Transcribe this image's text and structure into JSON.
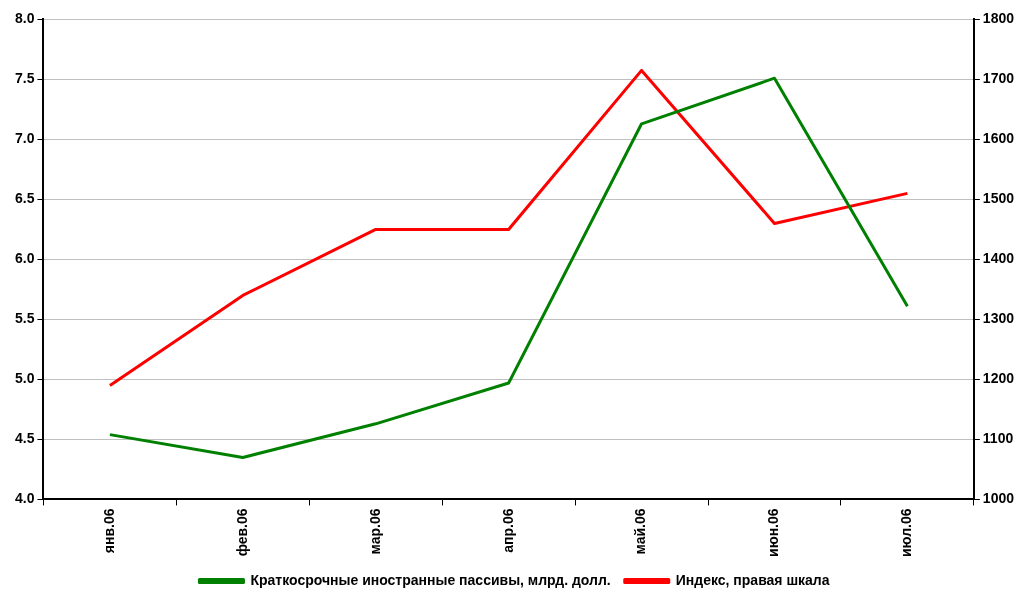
{
  "chart_data": {
    "type": "line",
    "categories": [
      "янв.06",
      "фев.06",
      "мар.06",
      "апр.06",
      "май.06",
      "июн.06",
      "июл.06"
    ],
    "series": [
      {
        "name": "Краткосрочные иностранные пассивы, млрд. долл.",
        "color": "#008000",
        "values": [
          4.54,
          4.35,
          4.63,
          4.97,
          7.13,
          7.51,
          5.61
        ]
      },
      {
        "name": "Индекс, правая шкала",
        "color": "#ff0000",
        "axis": "y2",
        "values": [
          1190,
          1340,
          1450,
          1450,
          1715,
          1460,
          1510
        ]
      }
    ],
    "ylim": [
      4,
      8
    ],
    "yticks": [
      {
        "value": 4,
        "label": "4.0"
      },
      {
        "value": 4.5,
        "label": "4.5"
      },
      {
        "value": 5,
        "label": "5.0"
      },
      {
        "value": 5.5,
        "label": "5.5"
      },
      {
        "value": 6,
        "label": "6.0"
      },
      {
        "value": 6.5,
        "label": "6.5"
      },
      {
        "value": 7,
        "label": "7.0"
      },
      {
        "value": 7.5,
        "label": "7.5"
      },
      {
        "value": 8,
        "label": "8.0"
      }
    ],
    "y2lim": [
      1000,
      1800
    ],
    "y2ticks": [
      1000,
      1100,
      1200,
      1300,
      1400,
      1500,
      1600,
      1700,
      1800
    ],
    "grid": "y",
    "legend": "bottom",
    "marker": "none",
    "line_style": "solid"
  }
}
